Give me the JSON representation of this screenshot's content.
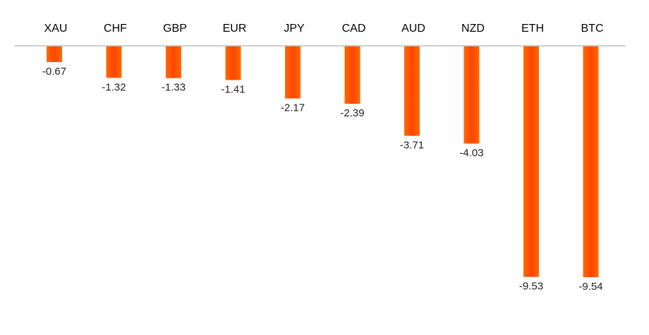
{
  "chart_data": {
    "type": "bar",
    "categories": [
      "XAU",
      "CHF",
      "GBP",
      "EUR",
      "JPY",
      "CAD",
      "AUD",
      "NZD",
      "ETH",
      "BTC"
    ],
    "values": [
      -0.67,
      -1.32,
      -1.33,
      -1.41,
      -2.17,
      -2.39,
      -3.71,
      -4.03,
      -9.53,
      -9.54
    ],
    "data_labels": [
      "-0.67",
      "-1.32",
      "-1.33",
      "-1.41",
      "-2.17",
      "-2.39",
      "-3.71",
      "-4.03",
      "-9.53",
      "-9.54"
    ],
    "title": "",
    "xlabel": "",
    "ylabel": "",
    "ylim": [
      -9.54,
      0
    ],
    "grid": false,
    "legend": "none",
    "category_axis_position": "top",
    "bar_color": "#ff4500",
    "bar_gradient_edge": "#ff6a00",
    "axis_color": "#bfbfbf"
  }
}
